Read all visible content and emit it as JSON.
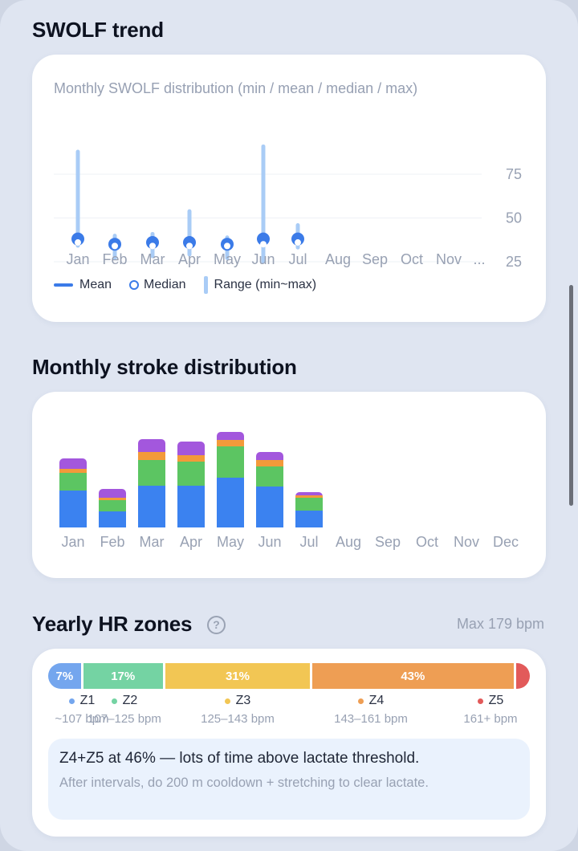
{
  "swolf": {
    "title": "SWOLF trend",
    "subtitle": "Monthly SWOLF distribution (min / mean / median / max)",
    "legend": {
      "mean": "Mean",
      "median": "Median",
      "range": "Range (min~max)"
    },
    "chart_data": {
      "type": "scatter",
      "categories": [
        "Jan",
        "Feb",
        "Mar",
        "Apr",
        "May",
        "Jun",
        "Jul",
        "Aug",
        "Sep",
        "Oct",
        "Nov",
        "..."
      ],
      "y_ticks": [
        "75",
        "50",
        "25"
      ],
      "ylim": [
        20,
        100
      ],
      "series": [
        {
          "name": "Mean",
          "values": [
            38,
            35,
            36,
            36,
            35,
            38,
            38,
            null,
            null,
            null,
            null,
            null
          ]
        },
        {
          "name": "Median",
          "values": [
            36,
            34,
            34,
            34,
            34,
            35,
            36,
            null,
            null,
            null,
            null,
            null
          ]
        },
        {
          "name": "Range (min~max)",
          "min": [
            33,
            26,
            27,
            28,
            26,
            24,
            32,
            null,
            null,
            null,
            null,
            null
          ],
          "max": [
            89,
            41,
            42,
            55,
            40,
            92,
            47,
            null,
            null,
            null,
            null,
            null
          ]
        }
      ],
      "colors": {
        "mean": "#3b7be8",
        "range": "#a9ccf6"
      }
    }
  },
  "strokes": {
    "title": "Monthly stroke distribution",
    "chart_data": {
      "type": "bar",
      "stacked": true,
      "categories": [
        "Jan",
        "Feb",
        "Mar",
        "Apr",
        "May",
        "Jun",
        "Jul",
        "Aug",
        "Sep",
        "Oct",
        "Nov",
        "Dec"
      ],
      "series": [
        {
          "color": "#3b82f0",
          "values": [
            46,
            20,
            52,
            52,
            62,
            51,
            21,
            0,
            0,
            0,
            0,
            0
          ]
        },
        {
          "color": "#5cc562",
          "values": [
            22,
            14,
            32,
            30,
            39,
            25,
            16,
            0,
            0,
            0,
            0,
            0
          ]
        },
        {
          "color": "#f39a3a",
          "values": [
            5,
            3,
            10,
            8,
            8,
            8,
            3,
            0,
            0,
            0,
            0,
            0
          ]
        },
        {
          "color": "#a357dd",
          "values": [
            13,
            11,
            16,
            17,
            10,
            10,
            4,
            0,
            0,
            0,
            0,
            0
          ]
        }
      ]
    }
  },
  "hr": {
    "title": "Yearly HR zones",
    "help_icon": "question-circle-icon",
    "max_label": "Max 179 bpm",
    "zones": [
      {
        "pct": 7,
        "label": "7%",
        "name": "Z1",
        "range": "~107 bpm",
        "color": "#74a6ee"
      },
      {
        "pct": 17,
        "label": "17%",
        "name": "Z2",
        "range": "107–125 bpm",
        "color": "#74d3a3"
      },
      {
        "pct": 31,
        "label": "31%",
        "name": "Z3",
        "range": "125–143 bpm",
        "color": "#f2c654"
      },
      {
        "pct": 43,
        "label": "43%",
        "name": "Z4",
        "range": "143–161 bpm",
        "color": "#ee9e54"
      },
      {
        "pct": 3,
        "label": "",
        "name": "Z5",
        "range": "161+ bpm",
        "color": "#e25a5a"
      }
    ],
    "note_headline": "Z4+Z5 at 46% — lots of time above lactate threshold.",
    "note_body": "After intervals, do 200 m cooldown + stretching to clear lactate."
  }
}
